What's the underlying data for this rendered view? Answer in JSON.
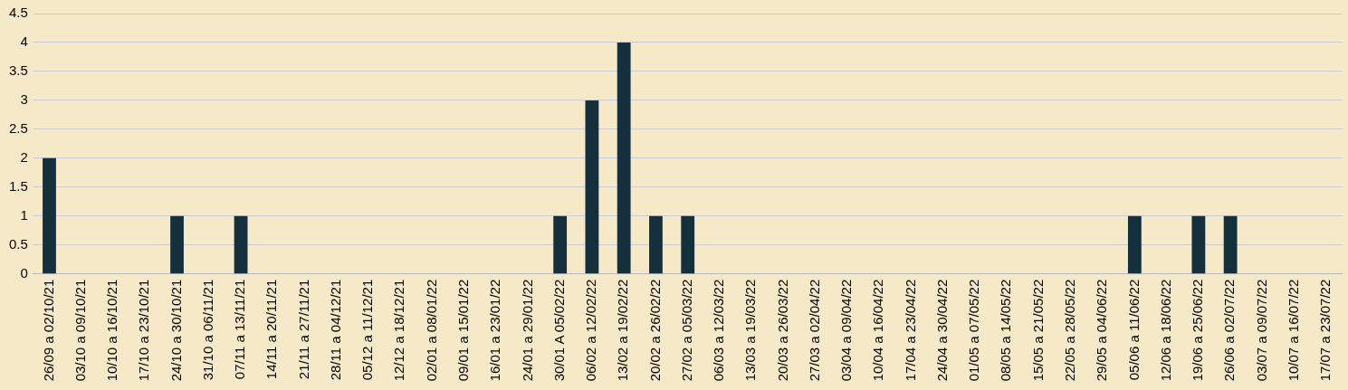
{
  "chart_data": {
    "type": "bar",
    "categories": [
      "26/09 a 02/10/21",
      "03/10 a 09/10/21",
      "10/10 a 16/10/21",
      "17/10 a 23/10/21",
      "24/10 a 30/10/21",
      "31/10 a 06/11/21",
      "07/11 a 13/11/21",
      "14/11 a 20/11/21",
      "21/11 a 27/11/21",
      "28/11 a 04/12/21",
      "05/12 a 11/12/21",
      "12/12 a 18/12/21",
      "02/01 a 08/01/22",
      "09/01 a 15/01/22",
      "16/01 a 23/01/22",
      "24/01 a 29/01/22",
      "30/01 A 05/02/22",
      "06/02 a 12/02/22",
      "13/02 a 19/02/22",
      "20/02 a 26/02/22",
      "27/02 a 05/03/22",
      "06/03 a 12/03/22",
      "13/03 a 19/03/22",
      "20/03 a 26/03/22",
      "27/03 a 02/04/22",
      "03/04 a 09/04/22",
      "10/04 a 16/04/22",
      "17/04 a 23/04/22",
      "24/04 a 30/04/22",
      "01/05 a 07/05/22",
      "08/05 a 14/05/22",
      "15/05 a 21/05/22",
      "22/05 a 28/05/22",
      "29/05 a 04/06/22",
      "05/06 a 11/06/22",
      "12/06 a 18/06/22",
      "19/06 a 25/06/22",
      "26/06 a 02/07/22",
      "03/07 a 09/07/22",
      "10/07 a 16/07/22",
      "17/07 a 23/07/22"
    ],
    "values": [
      2,
      0,
      0,
      0,
      1,
      0,
      1,
      0,
      0,
      0,
      0,
      0,
      0,
      0,
      0,
      0,
      1,
      3,
      4,
      1,
      1,
      0,
      0,
      0,
      0,
      0,
      0,
      0,
      0,
      0,
      0,
      0,
      0,
      0,
      1,
      0,
      1,
      1,
      0,
      0,
      0
    ],
    "color": "#14303c",
    "ylim": [
      0,
      4.5
    ],
    "yticks": [
      0,
      0.5,
      1,
      1.5,
      2,
      2.5,
      3,
      3.5,
      4,
      4.5
    ],
    "grid": "y",
    "legend": false
  }
}
